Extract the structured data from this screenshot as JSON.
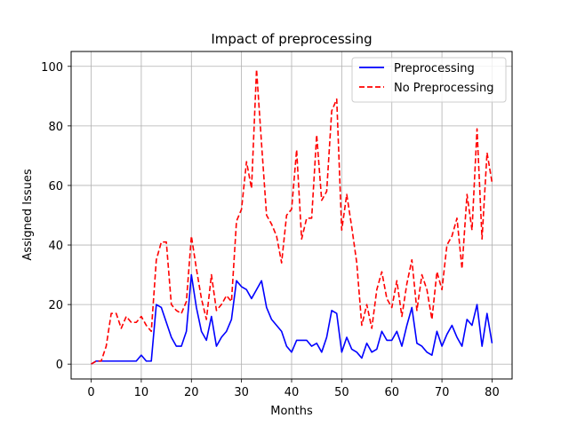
{
  "chart_data": {
    "type": "line",
    "title": "Impact of preprocessing",
    "xlabel": "Months",
    "ylabel": "Assigned Issues",
    "xlim": [
      -4,
      84
    ],
    "ylim": [
      -5,
      105
    ],
    "xticks": [
      0,
      10,
      20,
      30,
      40,
      50,
      60,
      70,
      80
    ],
    "yticks": [
      0,
      20,
      40,
      60,
      80,
      100
    ],
    "grid": true,
    "legend_position": "top-right",
    "x": [
      0,
      1,
      2,
      3,
      4,
      5,
      6,
      7,
      8,
      9,
      10,
      11,
      12,
      13,
      14,
      15,
      16,
      17,
      18,
      19,
      20,
      21,
      22,
      23,
      24,
      25,
      26,
      27,
      28,
      29,
      30,
      31,
      32,
      33,
      34,
      35,
      36,
      37,
      38,
      39,
      40,
      41,
      42,
      43,
      44,
      45,
      46,
      47,
      48,
      49,
      50,
      51,
      52,
      53,
      54,
      55,
      56,
      57,
      58,
      59,
      60,
      61,
      62,
      63,
      64,
      65,
      66,
      67,
      68,
      69,
      70,
      71,
      72,
      73,
      74,
      75,
      76,
      77,
      78,
      79,
      80
    ],
    "series": [
      {
        "name": "Preprocessing",
        "color": "#0000ff",
        "linestyle": "solid",
        "values": [
          0,
          1,
          1,
          1,
          1,
          1,
          1,
          1,
          1,
          1,
          3,
          1,
          1,
          20,
          19,
          14,
          9,
          6,
          6,
          11,
          30,
          19,
          11,
          8,
          16,
          6,
          9,
          11,
          15,
          28,
          26,
          25,
          22,
          25,
          28,
          19,
          15,
          13,
          11,
          6,
          4,
          8,
          8,
          8,
          6,
          7,
          4,
          9,
          18,
          17,
          4,
          9,
          5,
          4,
          2,
          7,
          4,
          5,
          11,
          8,
          8,
          11,
          6,
          13,
          19,
          7,
          6,
          4,
          3,
          11,
          6,
          10,
          13,
          9,
          6,
          15,
          13,
          20,
          6,
          17,
          7
        ]
      },
      {
        "name": "No Preprocessing",
        "color": "#ff0000",
        "linestyle": "dashed",
        "values": [
          0,
          1,
          1,
          6,
          17,
          17,
          12,
          16,
          14,
          14,
          16,
          13,
          11,
          35,
          41,
          41,
          20,
          18,
          17,
          21,
          43,
          32,
          22,
          15,
          30,
          18,
          20,
          23,
          21,
          48,
          52,
          68,
          59,
          99,
          74,
          50,
          47,
          43,
          34,
          50,
          52,
          72,
          42,
          49,
          49,
          77,
          55,
          58,
          85,
          89,
          45,
          57,
          46,
          34,
          13,
          20,
          12,
          25,
          31,
          22,
          19,
          28,
          16,
          27,
          35,
          18,
          30,
          25,
          15,
          31,
          25,
          40,
          43,
          49,
          32,
          57,
          45,
          79,
          42,
          71,
          61
        ]
      }
    ]
  }
}
